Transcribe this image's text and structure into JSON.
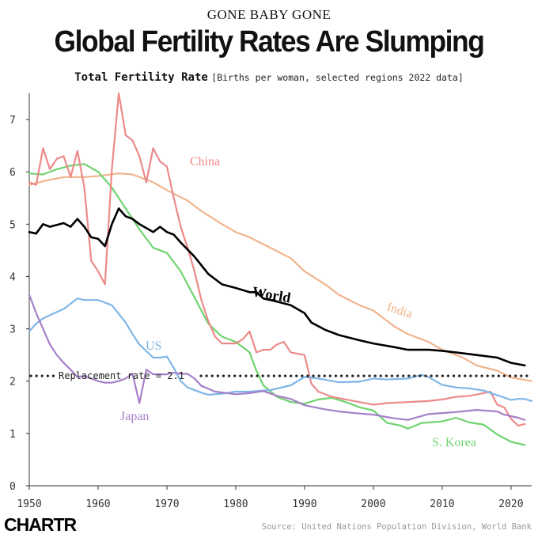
{
  "header": {
    "supertitle": "GONE BABY GONE",
    "title": "Global Fertility Rates Are Slumping",
    "subtitle_bold": "Total Fertility Rate",
    "subtitle_light": "[Births per woman, selected regions 2022 data]"
  },
  "footer": {
    "logo": "CHARTR",
    "source": "Source: United Nations Population Division, World Bank"
  },
  "chart_data": {
    "type": "line",
    "title": "Global Fertility Rates Are Slumping",
    "xlabel": "",
    "ylabel": "",
    "xlim": [
      1950,
      2023
    ],
    "ylim": [
      0,
      7.5
    ],
    "x_ticks": [
      1950,
      1960,
      1970,
      1980,
      1990,
      2000,
      2010,
      2020
    ],
    "y_ticks": [
      0,
      1,
      2,
      3,
      4,
      5,
      6,
      7
    ],
    "grid": false,
    "legend": "inline labels",
    "reference_line": {
      "label": "Replacement rate = 2.1",
      "value": 2.1,
      "color": "#222222"
    },
    "series": [
      {
        "name": "India",
        "color": "#f0b48c",
        "points": [
          [
            1950,
            5.75
          ],
          [
            1952,
            5.82
          ],
          [
            1955,
            5.9
          ],
          [
            1958,
            5.9
          ],
          [
            1960,
            5.92
          ],
          [
            1963,
            5.97
          ],
          [
            1965,
            5.95
          ],
          [
            1968,
            5.8
          ],
          [
            1970,
            5.65
          ],
          [
            1973,
            5.45
          ],
          [
            1975,
            5.25
          ],
          [
            1978,
            5.0
          ],
          [
            1980,
            4.85
          ],
          [
            1982,
            4.75
          ],
          [
            1985,
            4.55
          ],
          [
            1988,
            4.35
          ],
          [
            1990,
            4.1
          ],
          [
            1993,
            3.85
          ],
          [
            1995,
            3.65
          ],
          [
            1998,
            3.45
          ],
          [
            2000,
            3.35
          ],
          [
            2003,
            3.05
          ],
          [
            2005,
            2.9
          ],
          [
            2008,
            2.75
          ],
          [
            2010,
            2.6
          ],
          [
            2013,
            2.45
          ],
          [
            2015,
            2.3
          ],
          [
            2018,
            2.2
          ],
          [
            2020,
            2.07
          ],
          [
            2023,
            2.0
          ]
        ]
      },
      {
        "name": "S. Korea",
        "color": "#6fd36f",
        "points": [
          [
            1950,
            5.97
          ],
          [
            1952,
            5.95
          ],
          [
            1954,
            6.05
          ],
          [
            1956,
            6.12
          ],
          [
            1958,
            6.15
          ],
          [
            1960,
            6.0
          ],
          [
            1962,
            5.7
          ],
          [
            1964,
            5.3
          ],
          [
            1966,
            4.9
          ],
          [
            1968,
            4.55
          ],
          [
            1970,
            4.45
          ],
          [
            1972,
            4.1
          ],
          [
            1974,
            3.6
          ],
          [
            1976,
            3.1
          ],
          [
            1978,
            2.85
          ],
          [
            1980,
            2.75
          ],
          [
            1982,
            2.55
          ],
          [
            1983,
            2.2
          ],
          [
            1984,
            1.92
          ],
          [
            1986,
            1.7
          ],
          [
            1988,
            1.6
          ],
          [
            1990,
            1.57
          ],
          [
            1992,
            1.65
          ],
          [
            1994,
            1.68
          ],
          [
            1996,
            1.6
          ],
          [
            1998,
            1.5
          ],
          [
            2000,
            1.44
          ],
          [
            2002,
            1.2
          ],
          [
            2004,
            1.15
          ],
          [
            2005,
            1.09
          ],
          [
            2007,
            1.2
          ],
          [
            2010,
            1.23
          ],
          [
            2012,
            1.3
          ],
          [
            2014,
            1.21
          ],
          [
            2016,
            1.17
          ],
          [
            2018,
            0.98
          ],
          [
            2020,
            0.84
          ],
          [
            2022,
            0.78
          ]
        ]
      },
      {
        "name": "China",
        "color": "#ec8a8a",
        "points": [
          [
            1950,
            5.8
          ],
          [
            1951,
            5.75
          ],
          [
            1952,
            6.45
          ],
          [
            1953,
            6.05
          ],
          [
            1954,
            6.25
          ],
          [
            1955,
            6.3
          ],
          [
            1956,
            5.9
          ],
          [
            1957,
            6.4
          ],
          [
            1958,
            5.7
          ],
          [
            1959,
            4.3
          ],
          [
            1960,
            4.1
          ],
          [
            1961,
            3.85
          ],
          [
            1962,
            6.05
          ],
          [
            1963,
            7.5
          ],
          [
            1964,
            6.7
          ],
          [
            1965,
            6.6
          ],
          [
            1966,
            6.3
          ],
          [
            1967,
            5.8
          ],
          [
            1968,
            6.45
          ],
          [
            1969,
            6.2
          ],
          [
            1970,
            6.1
          ],
          [
            1971,
            5.5
          ],
          [
            1972,
            4.95
          ],
          [
            1973,
            4.55
          ],
          [
            1974,
            4.1
          ],
          [
            1975,
            3.55
          ],
          [
            1976,
            3.15
          ],
          [
            1977,
            2.85
          ],
          [
            1978,
            2.72
          ],
          [
            1980,
            2.72
          ],
          [
            1981,
            2.8
          ],
          [
            1982,
            2.95
          ],
          [
            1983,
            2.55
          ],
          [
            1984,
            2.6
          ],
          [
            1985,
            2.6
          ],
          [
            1986,
            2.7
          ],
          [
            1987,
            2.75
          ],
          [
            1988,
            2.55
          ],
          [
            1990,
            2.5
          ],
          [
            1991,
            1.95
          ],
          [
            1992,
            1.8
          ],
          [
            1994,
            1.7
          ],
          [
            1996,
            1.65
          ],
          [
            1998,
            1.6
          ],
          [
            2000,
            1.55
          ],
          [
            2002,
            1.58
          ],
          [
            2005,
            1.6
          ],
          [
            2008,
            1.62
          ],
          [
            2010,
            1.65
          ],
          [
            2012,
            1.7
          ],
          [
            2014,
            1.72
          ],
          [
            2016,
            1.77
          ],
          [
            2017,
            1.8
          ],
          [
            2018,
            1.55
          ],
          [
            2019,
            1.5
          ],
          [
            2020,
            1.28
          ],
          [
            2021,
            1.15
          ],
          [
            2022,
            1.18
          ]
        ]
      },
      {
        "name": "World",
        "color": "#000000",
        "points": [
          [
            1950,
            4.85
          ],
          [
            1951,
            4.82
          ],
          [
            1952,
            5.0
          ],
          [
            1953,
            4.95
          ],
          [
            1955,
            5.02
          ],
          [
            1956,
            4.95
          ],
          [
            1957,
            5.1
          ],
          [
            1958,
            4.95
          ],
          [
            1959,
            4.75
          ],
          [
            1960,
            4.72
          ],
          [
            1961,
            4.58
          ],
          [
            1962,
            5.0
          ],
          [
            1963,
            5.3
          ],
          [
            1964,
            5.15
          ],
          [
            1965,
            5.1
          ],
          [
            1966,
            5.0
          ],
          [
            1968,
            4.85
          ],
          [
            1969,
            4.95
          ],
          [
            1970,
            4.85
          ],
          [
            1971,
            4.8
          ],
          [
            1972,
            4.65
          ],
          [
            1974,
            4.38
          ],
          [
            1976,
            4.05
          ],
          [
            1978,
            3.85
          ],
          [
            1980,
            3.78
          ],
          [
            1982,
            3.7
          ],
          [
            1983,
            3.7
          ],
          [
            1984,
            3.58
          ],
          [
            1986,
            3.52
          ],
          [
            1988,
            3.45
          ],
          [
            1990,
            3.3
          ],
          [
            1991,
            3.12
          ],
          [
            1993,
            2.98
          ],
          [
            1995,
            2.88
          ],
          [
            1998,
            2.78
          ],
          [
            2000,
            2.72
          ],
          [
            2003,
            2.65
          ],
          [
            2005,
            2.6
          ],
          [
            2008,
            2.6
          ],
          [
            2010,
            2.58
          ],
          [
            2012,
            2.55
          ],
          [
            2015,
            2.5
          ],
          [
            2018,
            2.45
          ],
          [
            2020,
            2.35
          ],
          [
            2022,
            2.3
          ]
        ]
      },
      {
        "name": "US",
        "color": "#7fb6e6",
        "points": [
          [
            1950,
            2.95
          ],
          [
            1951,
            3.1
          ],
          [
            1952,
            3.2
          ],
          [
            1954,
            3.32
          ],
          [
            1955,
            3.38
          ],
          [
            1956,
            3.48
          ],
          [
            1957,
            3.58
          ],
          [
            1958,
            3.55
          ],
          [
            1960,
            3.55
          ],
          [
            1962,
            3.45
          ],
          [
            1964,
            3.12
          ],
          [
            1965,
            2.9
          ],
          [
            1966,
            2.7
          ],
          [
            1968,
            2.45
          ],
          [
            1969,
            2.45
          ],
          [
            1970,
            2.47
          ],
          [
            1971,
            2.25
          ],
          [
            1972,
            2.0
          ],
          [
            1973,
            1.88
          ],
          [
            1975,
            1.78
          ],
          [
            1976,
            1.74
          ],
          [
            1978,
            1.76
          ],
          [
            1980,
            1.8
          ],
          [
            1982,
            1.8
          ],
          [
            1985,
            1.83
          ],
          [
            1988,
            1.92
          ],
          [
            1990,
            2.08
          ],
          [
            1992,
            2.05
          ],
          [
            1995,
            1.98
          ],
          [
            1998,
            1.99
          ],
          [
            2000,
            2.05
          ],
          [
            2002,
            2.03
          ],
          [
            2005,
            2.05
          ],
          [
            2007,
            2.12
          ],
          [
            2008,
            2.08
          ],
          [
            2010,
            1.93
          ],
          [
            2012,
            1.88
          ],
          [
            2014,
            1.86
          ],
          [
            2016,
            1.82
          ],
          [
            2018,
            1.73
          ],
          [
            2020,
            1.64
          ],
          [
            2021,
            1.66
          ],
          [
            2022,
            1.66
          ],
          [
            2023,
            1.62
          ]
        ]
      },
      {
        "name": "Japan",
        "color": "#a57fc8",
        "points": [
          [
            1950,
            3.65
          ],
          [
            1951,
            3.3
          ],
          [
            1952,
            3.0
          ],
          [
            1953,
            2.7
          ],
          [
            1954,
            2.5
          ],
          [
            1955,
            2.35
          ],
          [
            1956,
            2.22
          ],
          [
            1957,
            2.08
          ],
          [
            1958,
            2.1
          ],
          [
            1959,
            2.05
          ],
          [
            1960,
            2.0
          ],
          [
            1961,
            1.97
          ],
          [
            1962,
            1.97
          ],
          [
            1963,
            2.0
          ],
          [
            1964,
            2.05
          ],
          [
            1965,
            2.14
          ],
          [
            1966,
            1.58
          ],
          [
            1967,
            2.22
          ],
          [
            1968,
            2.13
          ],
          [
            1969,
            2.13
          ],
          [
            1970,
            2.13
          ],
          [
            1971,
            2.16
          ],
          [
            1972,
            2.14
          ],
          [
            1973,
            2.14
          ],
          [
            1974,
            2.05
          ],
          [
            1975,
            1.91
          ],
          [
            1977,
            1.8
          ],
          [
            1980,
            1.75
          ],
          [
            1982,
            1.77
          ],
          [
            1984,
            1.81
          ],
          [
            1986,
            1.72
          ],
          [
            1988,
            1.66
          ],
          [
            1990,
            1.54
          ],
          [
            1993,
            1.46
          ],
          [
            1995,
            1.42
          ],
          [
            1998,
            1.38
          ],
          [
            2000,
            1.36
          ],
          [
            2003,
            1.29
          ],
          [
            2005,
            1.26
          ],
          [
            2008,
            1.37
          ],
          [
            2010,
            1.39
          ],
          [
            2012,
            1.41
          ],
          [
            2015,
            1.45
          ],
          [
            2016,
            1.44
          ],
          [
            2018,
            1.42
          ],
          [
            2019,
            1.36
          ],
          [
            2020,
            1.33
          ],
          [
            2021,
            1.3
          ],
          [
            2022,
            1.26
          ]
        ]
      }
    ]
  }
}
